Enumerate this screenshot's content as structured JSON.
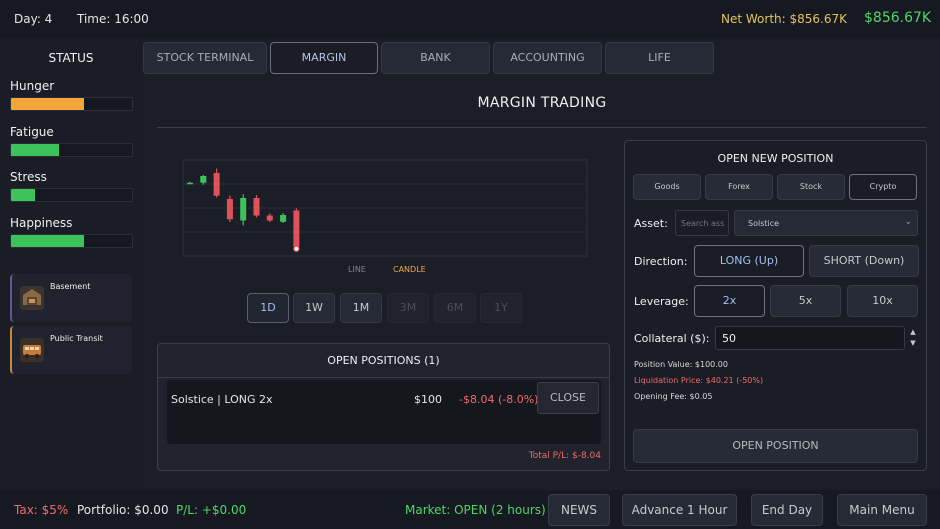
{
  "topbar": {
    "day": "Day: 4",
    "time": "Time: 16:00",
    "net_worth_label": "Net Worth: $856.67K",
    "net_worth_value": "$856.67K",
    "colors": {
      "net_worth_label": "#e3c35a",
      "net_worth_value": "#4cd964"
    }
  },
  "sidebar": {
    "title": "STATUS",
    "stats": [
      {
        "label": "Hunger",
        "level": 0.6,
        "color": "#f4a63a"
      },
      {
        "label": "Fatigue",
        "level": 0.4,
        "color": "#3cc35a"
      },
      {
        "label": "Stress",
        "level": 0.2,
        "color": "#3cc35a"
      },
      {
        "label": "Happiness",
        "level": 0.6,
        "color": "#3cc35a"
      }
    ],
    "cards": [
      {
        "label": "Basement",
        "icon": "basement-icon",
        "accent": "#5a5a9a"
      },
      {
        "label": "Public Transit",
        "icon": "bus-icon",
        "accent": "#c48a3a"
      }
    ]
  },
  "tabs": [
    {
      "label": "STOCK TERMINAL",
      "active": false
    },
    {
      "label": "MARGIN",
      "active": true
    },
    {
      "label": "BANK",
      "active": false
    },
    {
      "label": "ACCOUNTING",
      "active": false
    },
    {
      "label": "LIFE",
      "active": false
    }
  ],
  "main": {
    "title": "MARGIN TRADING",
    "chart_modes": {
      "line": "LINE",
      "candle": "CANDLE",
      "active": "CANDLE"
    },
    "timeframes": [
      {
        "label": "1D",
        "state": "active"
      },
      {
        "label": "1W",
        "state": "enabled"
      },
      {
        "label": "1M",
        "state": "enabled"
      },
      {
        "label": "3M",
        "state": "disabled"
      },
      {
        "label": "6M",
        "state": "disabled"
      },
      {
        "label": "1Y",
        "state": "disabled"
      }
    ]
  },
  "chart_data": {
    "type": "candlestick",
    "ohlc": [
      {
        "open": 50.0,
        "high": 50.5,
        "low": 49.6,
        "close": 50.1
      },
      {
        "open": 50.1,
        "high": 53.2,
        "low": 49.3,
        "close": 52.8
      },
      {
        "open": 54.0,
        "high": 55.8,
        "low": 44.2,
        "close": 44.9
      },
      {
        "open": 43.6,
        "high": 45.0,
        "low": 34.4,
        "close": 35.5
      },
      {
        "open": 35.0,
        "high": 45.5,
        "low": 33.0,
        "close": 44.0
      },
      {
        "open": 44.0,
        "high": 45.2,
        "low": 36.2,
        "close": 37.0
      },
      {
        "open": 37.0,
        "high": 37.8,
        "low": 34.4,
        "close": 35.0
      },
      {
        "open": 34.5,
        "high": 38.0,
        "low": 34.0,
        "close": 37.2
      },
      {
        "open": 39.0,
        "high": 39.8,
        "low": 22.6,
        "close": 24.5
      }
    ],
    "current_marker_index": 8,
    "ylim": [
      20,
      60
    ],
    "grid": true,
    "up_color": "#3cc35a",
    "down_color": "#e0525a"
  },
  "positions": {
    "title": "OPEN POSITIONS (1)",
    "rows": [
      {
        "name": "Solstice | LONG 2x",
        "amount": "$100",
        "pl": "-$8.04 (-8.0%)",
        "close_label": "CLOSE"
      }
    ],
    "total": "Total P/L: $-8.04"
  },
  "open_position": {
    "title": "OPEN NEW POSITION",
    "categories": [
      {
        "label": "Goods",
        "active": false
      },
      {
        "label": "Forex",
        "active": false
      },
      {
        "label": "Stock",
        "active": false
      },
      {
        "label": "Crypto",
        "active": true
      }
    ],
    "asset_label": "Asset:",
    "asset_search_placeholder": "Search ass",
    "asset_selected": "Solstice",
    "direction_label": "Direction:",
    "directions": [
      {
        "label": "LONG (Up)",
        "active": true
      },
      {
        "label": "SHORT (Down)",
        "active": false
      }
    ],
    "leverage_label": "Leverage:",
    "leverages": [
      {
        "label": "2x",
        "active": true
      },
      {
        "label": "5x",
        "active": false
      },
      {
        "label": "10x",
        "active": false
      }
    ],
    "collateral_label": "Collateral ($):",
    "collateral_value": "50",
    "position_value": "Position Value: $100.00",
    "liquidation": "Liquidation Price: $40.21 (-50%)",
    "fee": "Opening Fee: $0.05",
    "submit_label": "OPEN POSITION"
  },
  "bottombar": {
    "tax": "Tax: $5%",
    "portfolio": "Portfolio: $0.00",
    "pl": "P/L: +$0.00",
    "market": "Market: OPEN (2 hours)",
    "buttons": {
      "news": "NEWS",
      "advance": "Advance 1 Hour",
      "end_day": "End Day",
      "main_menu": "Main Menu"
    },
    "colors": {
      "tax": "#f06a6a",
      "pl": "#4cd964",
      "market": "#4cd964"
    }
  }
}
